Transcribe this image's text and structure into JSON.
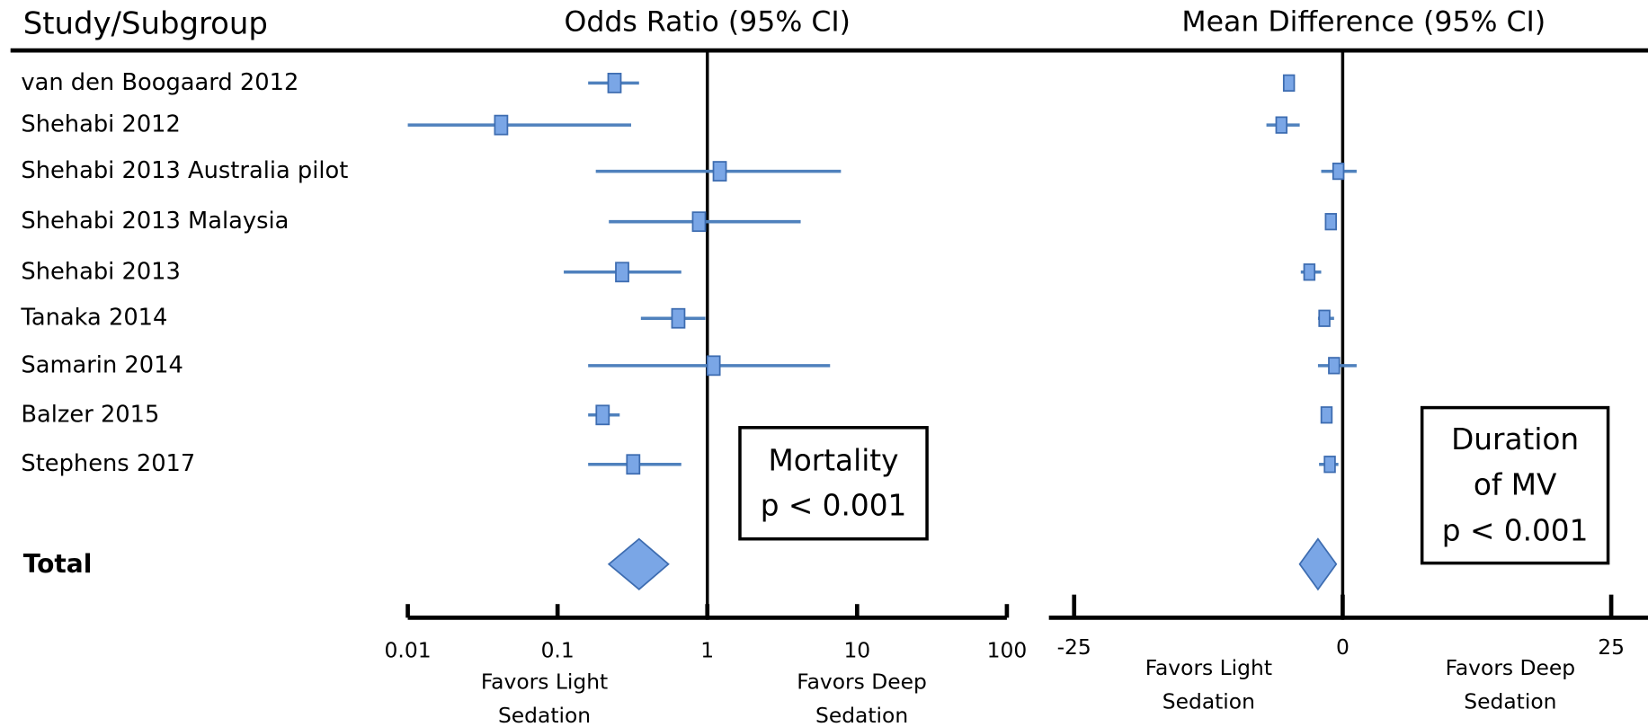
{
  "study_label": "Study/Subgroup",
  "studies": [
    "van den Boogaard 2012",
    "Shehabi 2012",
    "Shehabi 2013 Australia pilot",
    "Shehabi 2013 Malaysia",
    "Shehabi 2013",
    "Tanaka 2014",
    "Samarin 2014",
    "Balzer 2015",
    "Stephens 2017"
  ],
  "total_label": "Total",
  "chart_data": [
    {
      "type": "forest",
      "title": "Odds Ratio (95% CI)",
      "log_scale": true,
      "color": "#4f81bd",
      "xlim": [
        0.01,
        100
      ],
      "xticks": [
        0.01,
        0.1,
        1,
        10,
        100
      ],
      "null_line": 1,
      "estimates": [
        0.24,
        0.042,
        1.21,
        0.88,
        0.27,
        0.64,
        1.1,
        0.2,
        0.32
      ],
      "lower": [
        0.16,
        0.01,
        0.18,
        0.22,
        0.11,
        0.36,
        0.16,
        0.16,
        0.16
      ],
      "upper": [
        0.35,
        0.31,
        7.8,
        4.2,
        0.67,
        0.97,
        6.6,
        0.26,
        0.67
      ],
      "total": {
        "estimate": 0.35,
        "lower": 0.22,
        "upper": 0.55
      },
      "favors_left": [
        "Favors Light",
        "Sedation"
      ],
      "favors_right": [
        "Favors Deep",
        "Sedation"
      ],
      "annotation": [
        "Mortality",
        "p < 0.001"
      ]
    },
    {
      "type": "forest",
      "title": "Mean Difference (95% CI)",
      "log_scale": false,
      "color": "#4f81bd",
      "xlim": [
        -25,
        25
      ],
      "xticks": [
        -25,
        0,
        25
      ],
      "null_line": 0,
      "estimates": [
        -5.0,
        -5.7,
        -0.4,
        -1.1,
        -3.1,
        -1.7,
        -0.8,
        -1.5,
        -1.2
      ],
      "lower": [
        -5.0,
        -7.1,
        -2.0,
        -1.3,
        -3.9,
        -2.3,
        -2.3,
        -1.6,
        -2.2
      ],
      "upper": [
        -5.0,
        -4.0,
        1.3,
        -0.9,
        -2.0,
        -0.8,
        1.3,
        -1.4,
        -0.4
      ],
      "total": {
        "estimate": -2.3,
        "lower": -4.0,
        "upper": -0.6
      },
      "favors_left": [
        "Favors Light",
        "Sedation"
      ],
      "favors_right": [
        "Favors Deep",
        "Sedation"
      ],
      "annotation": [
        "Duration",
        "of MV",
        "p < 0.001"
      ]
    }
  ]
}
